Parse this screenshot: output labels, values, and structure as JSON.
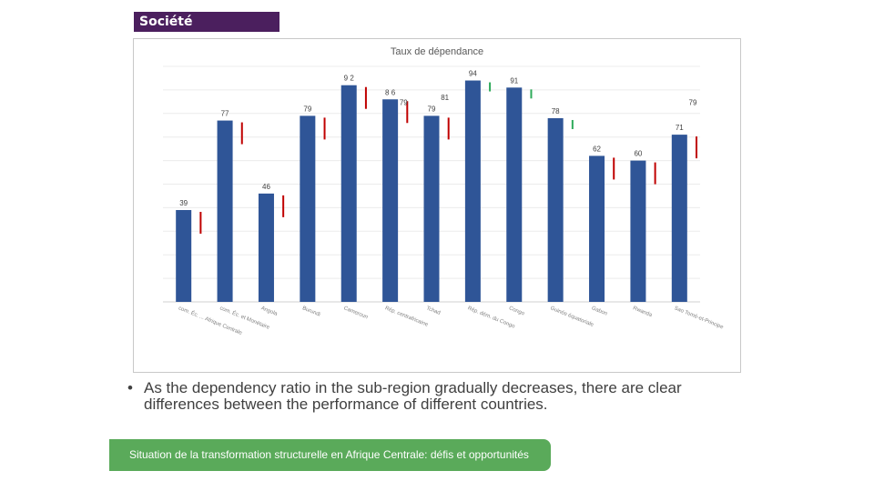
{
  "header": {
    "section_label": "Société"
  },
  "chart_data": {
    "type": "bar",
    "title": "Taux de dépendance",
    "categories": [
      "Com. Économique des États de l'Afrique Centrale",
      "Com. Économique et Monétaire",
      "Angola",
      "Burundi",
      "Cameroun",
      "Rép. Centrafricaine",
      "Tchad",
      "Rép. dém. du Congo",
      "Congo",
      "Guinée équatoriale",
      "Gabon",
      "Rwanda",
      "Sao Tomé-et-Principe"
    ],
    "tick_labels_visible": [
      "com. Éc. ... Afrique Centrale",
      "com. Éc. et Monétaire",
      "Angola",
      "Burundi",
      "Cameroun",
      "Rép. centrafricaine",
      "Tchad",
      "Rép. dém. du Congo",
      "Congo",
      "Guinée équatoriale",
      "Gabon",
      "Rwanda",
      "Sao Tomé-et-Principe"
    ],
    "series": [
      {
        "values": [
          39,
          77,
          46,
          79,
          92,
          86,
          79,
          94,
          91,
          78,
          62,
          60,
          71
        ]
      },
      {
        "values": [
          null,
          null,
          null,
          null,
          79,
          null,
          81,
          null,
          null,
          null,
          null,
          null,
          79
        ]
      }
    ],
    "bar_labels": [
      "39",
      "77",
      "46",
      "79",
      "9 2",
      "8 6",
      "79",
      "94",
      "91",
      "78",
      "62",
      "60",
      "71"
    ],
    "extra_labels": [
      {
        "text": "79",
        "after_index": 5
      },
      {
        "text": "81",
        "after_index": 6
      },
      {
        "text": "79",
        "after_index": 12
      }
    ],
    "change_markers": [
      {
        "index": 0,
        "direction": "down",
        "color": "#c00000"
      },
      {
        "index": 1,
        "direction": "down",
        "color": "#c00000"
      },
      {
        "index": 2,
        "direction": "down",
        "color": "#c00000"
      },
      {
        "index": 3,
        "direction": "down",
        "color": "#c00000"
      },
      {
        "index": 4,
        "direction": "up",
        "color": "#c00000"
      },
      {
        "index": 5,
        "direction": "down",
        "color": "#c00000"
      },
      {
        "index": 6,
        "direction": "down",
        "color": "#c00000"
      },
      {
        "index": 7,
        "direction": "up",
        "color": "#2eaa5a"
      },
      {
        "index": 8,
        "direction": "up",
        "color": "#2eaa5a"
      },
      {
        "index": 9,
        "direction": "up",
        "color": "#2eaa5a"
      },
      {
        "index": 10,
        "direction": "down",
        "color": "#c00000"
      },
      {
        "index": 11,
        "direction": "down",
        "color": "#c00000"
      },
      {
        "index": 12,
        "direction": "down",
        "color": "#c00000"
      }
    ],
    "ylim": [
      0,
      100
    ],
    "grid": true,
    "bar_color": "#2f5597"
  },
  "bullet": {
    "marker": "•",
    "text": "As the dependency ratio in the sub-region gradually decreases, there are clear differences between the performance of different countries."
  },
  "footer": {
    "text": "Situation de la transformation structurelle en Afrique Centrale:  défis et opportunités"
  }
}
